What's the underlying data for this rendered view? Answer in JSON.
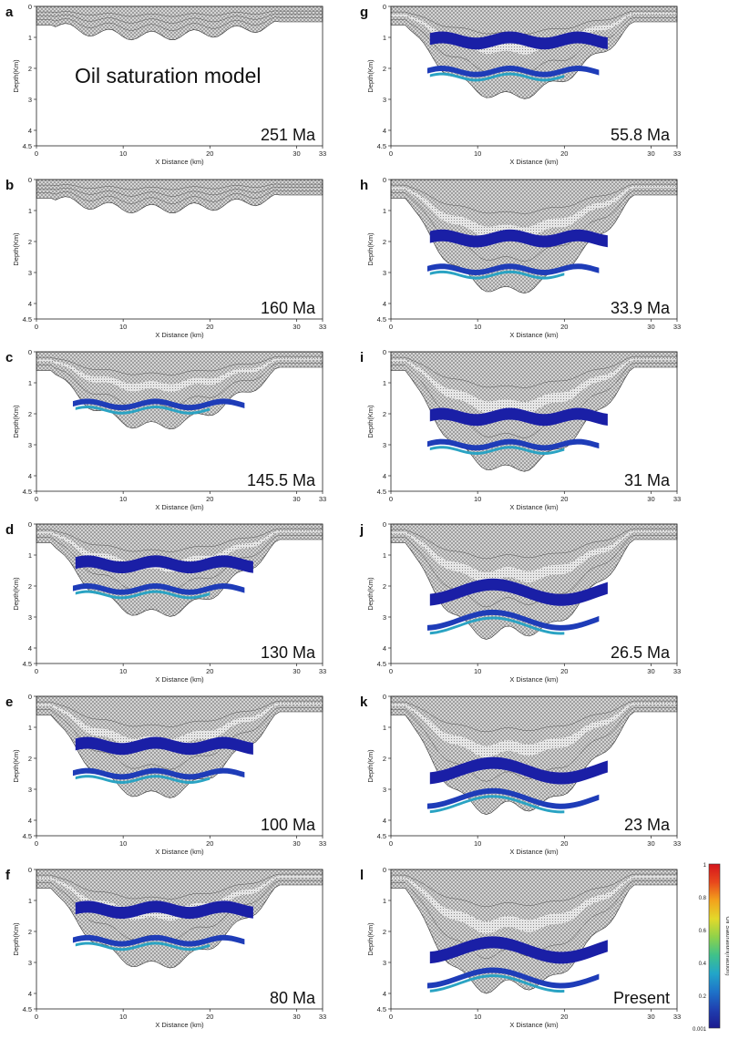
{
  "figure_title": "Oil saturation model",
  "colorbar": {
    "label": "Oil Saturation(fraction)",
    "ticks": [
      "0.001",
      "0.2",
      "0.4",
      "0.6",
      "0.8",
      "1"
    ],
    "colors": [
      "#1c1a8f",
      "#1f3fb0",
      "#1e73c9",
      "#22a6c9",
      "#3fc28a",
      "#8fd24a",
      "#e3d92a",
      "#f3a21c",
      "#e8481c",
      "#d4141c"
    ]
  },
  "chart_data": [
    {
      "type": "section",
      "panel": "a",
      "age": "251 Ma",
      "xlabel": "X Distance (km)",
      "ylabel": "Depth(Km)",
      "xlim": [
        0,
        33
      ],
      "ylim": [
        0,
        4.5
      ],
      "xticks": [
        "0",
        "10",
        "20",
        "30",
        "33"
      ],
      "yticks": [
        "0",
        "1",
        "2",
        "3",
        "4",
        "4.5"
      ],
      "basin_depth": 0.95,
      "upper_oil": null,
      "lower_oil": null
    },
    {
      "type": "section",
      "panel": "b",
      "age": "160 Ma",
      "xlabel": "X Distance (km)",
      "ylabel": "Depth(Km)",
      "xlim": [
        0,
        33
      ],
      "ylim": [
        0,
        4.5
      ],
      "xticks": [
        "0",
        "10",
        "20",
        "30",
        "33"
      ],
      "yticks": [
        "0",
        "1",
        "2",
        "3",
        "4",
        "4.5"
      ],
      "basin_depth": 0.95,
      "upper_oil": null,
      "lower_oil": null
    },
    {
      "type": "section",
      "panel": "c",
      "age": "145.5 Ma",
      "xlabel": "X Distance (km)",
      "ylabel": "Depth(Km)",
      "xlim": [
        0,
        33
      ],
      "ylim": [
        0,
        4.5
      ],
      "xticks": [
        "0",
        "10",
        "20",
        "30",
        "33"
      ],
      "yticks": [
        "0",
        "1",
        "2",
        "3",
        "4",
        "4.5"
      ],
      "basin_depth": 2.4,
      "upper_oil": null,
      "lower_oil": 1.7
    },
    {
      "type": "section",
      "panel": "d",
      "age": "130 Ma",
      "xlabel": "X Distance (km)",
      "ylabel": "Depth(Km)",
      "xlim": [
        0,
        33
      ],
      "ylim": [
        0,
        4.5
      ],
      "xticks": [
        "0",
        "10",
        "20",
        "30",
        "33"
      ],
      "yticks": [
        "0",
        "1",
        "2",
        "3",
        "4",
        "4.5"
      ],
      "basin_depth": 2.9,
      "upper_oil": 1.3,
      "lower_oil": 2.1
    },
    {
      "type": "section",
      "panel": "e",
      "age": "100 Ma",
      "xlabel": "X Distance (km)",
      "ylabel": "Depth(Km)",
      "xlim": [
        0,
        33
      ],
      "ylim": [
        0,
        4.5
      ],
      "xticks": [
        "0",
        "10",
        "20",
        "30",
        "33"
      ],
      "yticks": [
        "0",
        "1",
        "2",
        "3",
        "4",
        "4.5"
      ],
      "basin_depth": 3.2,
      "upper_oil": 1.6,
      "lower_oil": 2.5
    },
    {
      "type": "section",
      "panel": "f",
      "age": "80 Ma",
      "xlabel": "X Distance (km)",
      "ylabel": "Depth(Km)",
      "xlim": [
        0,
        33
      ],
      "ylim": [
        0,
        4.5
      ],
      "xticks": [
        "0",
        "10",
        "20",
        "30",
        "33"
      ],
      "yticks": [
        "0",
        "1",
        "2",
        "3",
        "4",
        "4.5"
      ],
      "basin_depth": 3.1,
      "upper_oil": 1.3,
      "lower_oil": 2.3
    },
    {
      "type": "section",
      "panel": "g",
      "age": "55.8 Ma",
      "xlabel": "X Distance (km)",
      "ylabel": "Depth(Km)",
      "xlim": [
        0,
        33
      ],
      "ylim": [
        0,
        4.5
      ],
      "xticks": [
        "0",
        "10",
        "20",
        "30",
        "33"
      ],
      "yticks": [
        "0",
        "1",
        "2",
        "3",
        "4",
        "4.5"
      ],
      "basin_depth": 2.9,
      "upper_oil": 1.1,
      "lower_oil": 2.1
    },
    {
      "type": "section",
      "panel": "h",
      "age": "33.9 Ma",
      "xlabel": "X Distance (km)",
      "ylabel": "Depth(Km)",
      "xlim": [
        0,
        33
      ],
      "ylim": [
        0,
        4.5
      ],
      "xticks": [
        "0",
        "10",
        "20",
        "30",
        "33"
      ],
      "yticks": [
        "0",
        "1",
        "2",
        "3",
        "4",
        "4.5"
      ],
      "basin_depth": 3.6,
      "upper_oil": 1.9,
      "lower_oil": 2.9
    },
    {
      "type": "section",
      "panel": "i",
      "age": "31 Ma",
      "xlabel": "X Distance (km)",
      "ylabel": "Depth(Km)",
      "xlim": [
        0,
        33
      ],
      "ylim": [
        0,
        4.5
      ],
      "xticks": [
        "0",
        "10",
        "20",
        "30",
        "33"
      ],
      "yticks": [
        "0",
        "1",
        "2",
        "3",
        "4",
        "4.5"
      ],
      "basin_depth": 3.8,
      "upper_oil": 2.1,
      "lower_oil": 3.0
    },
    {
      "type": "section",
      "panel": "j",
      "age": "26.5 Ma",
      "xlabel": "X Distance (km)",
      "ylabel": "Depth(Km)",
      "xlim": [
        0,
        33
      ],
      "ylim": [
        0,
        4.5
      ],
      "xticks": [
        "0",
        "10",
        "20",
        "30",
        "33"
      ],
      "yticks": [
        "0",
        "1",
        "2",
        "3",
        "4",
        "4.5"
      ],
      "basin_depth": 3.8,
      "upper_oil": 2.2,
      "lower_oil": 3.1
    },
    {
      "type": "section",
      "panel": "k",
      "age": "23 Ma",
      "xlabel": "X Distance (km)",
      "ylabel": "Depth(Km)",
      "xlim": [
        0,
        33
      ],
      "ylim": [
        0,
        4.5
      ],
      "xticks": [
        "0",
        "10",
        "20",
        "30",
        "33"
      ],
      "yticks": [
        "0",
        "1",
        "2",
        "3",
        "4",
        "4.5"
      ],
      "basin_depth": 3.9,
      "upper_oil": 2.4,
      "lower_oil": 3.3
    },
    {
      "type": "section",
      "panel": "l",
      "age": "Present",
      "xlabel": "X Distance (km)",
      "ylabel": "Depth(Km)",
      "xlim": [
        0,
        33
      ],
      "ylim": [
        0,
        4.5
      ],
      "xticks": [
        "0",
        "10",
        "20",
        "30",
        "33"
      ],
      "yticks": [
        "0",
        "1",
        "2",
        "3",
        "4",
        "4.5"
      ],
      "basin_depth": 4.1,
      "upper_oil": 2.6,
      "lower_oil": 3.5
    }
  ]
}
